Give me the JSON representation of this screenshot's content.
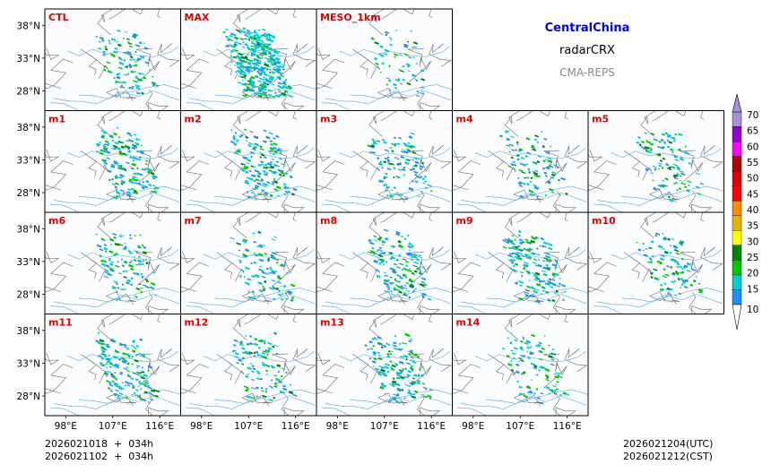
{
  "header": {
    "region": "CentralChina",
    "variable": "radarCRX",
    "source": "CMA-REPS"
  },
  "footer": {
    "init_utc": "2026021018  +  034h",
    "init_cst": "2026021102  +  034h",
    "valid_utc": "2026021204(UTC)",
    "valid_cst": "2026021212(CST)"
  },
  "chart_data": {
    "type": "heatmap",
    "title": "CentralChina radarCRX CMA-REPS",
    "panels": [
      {
        "label": "CTL",
        "row": 0,
        "col": 0,
        "coverage": "light"
      },
      {
        "label": "MAX",
        "row": 0,
        "col": 1,
        "coverage": "heavy"
      },
      {
        "label": "MESO_1km",
        "row": 0,
        "col": 2,
        "coverage": "sparse"
      },
      {
        "label": "m1",
        "row": 1,
        "col": 0,
        "coverage": "medium"
      },
      {
        "label": "m2",
        "row": 1,
        "col": 1,
        "coverage": "medium"
      },
      {
        "label": "m3",
        "row": 1,
        "col": 2,
        "coverage": "light"
      },
      {
        "label": "m4",
        "row": 1,
        "col": 3,
        "coverage": "light"
      },
      {
        "label": "m5",
        "row": 1,
        "col": 4,
        "coverage": "light"
      },
      {
        "label": "m6",
        "row": 2,
        "col": 0,
        "coverage": "light"
      },
      {
        "label": "m7",
        "row": 2,
        "col": 1,
        "coverage": "light"
      },
      {
        "label": "m8",
        "row": 2,
        "col": 2,
        "coverage": "medium"
      },
      {
        "label": "m9",
        "row": 2,
        "col": 3,
        "coverage": "medium"
      },
      {
        "label": "m10",
        "row": 2,
        "col": 4,
        "coverage": "light"
      },
      {
        "label": "m11",
        "row": 3,
        "col": 0,
        "coverage": "medium"
      },
      {
        "label": "m12",
        "row": 3,
        "col": 1,
        "coverage": "light"
      },
      {
        "label": "m13",
        "row": 3,
        "col": 2,
        "coverage": "medium"
      },
      {
        "label": "m14",
        "row": 3,
        "col": 3,
        "coverage": "light"
      }
    ],
    "x_ticks": [
      "98°E",
      "107°E",
      "116°E"
    ],
    "x_tick_values": [
      98,
      107,
      116
    ],
    "y_ticks": [
      "38°N",
      "33°N",
      "28°N"
    ],
    "y_tick_values": [
      38,
      33,
      28
    ],
    "lon_range": [
      94,
      120
    ],
    "lat_range": [
      25,
      40.5
    ],
    "colorbar": {
      "ticks": [
        "70",
        "65",
        "60",
        "55",
        "50",
        "45",
        "40",
        "35",
        "30",
        "25",
        "20",
        "15",
        "10"
      ],
      "levels": [
        10,
        15,
        20,
        25,
        30,
        35,
        40,
        45,
        50,
        55,
        60,
        65,
        70
      ],
      "colors": [
        "#1e90ff",
        "#00ced1",
        "#00c800",
        "#008000",
        "#ffff00",
        "#e6b400",
        "#ff8c00",
        "#ff0000",
        "#e00000",
        "#b40000",
        "#ff00ff",
        "#9400d3",
        "#ab8fd6"
      ],
      "extend": "both"
    },
    "label_color": "#e00000"
  }
}
